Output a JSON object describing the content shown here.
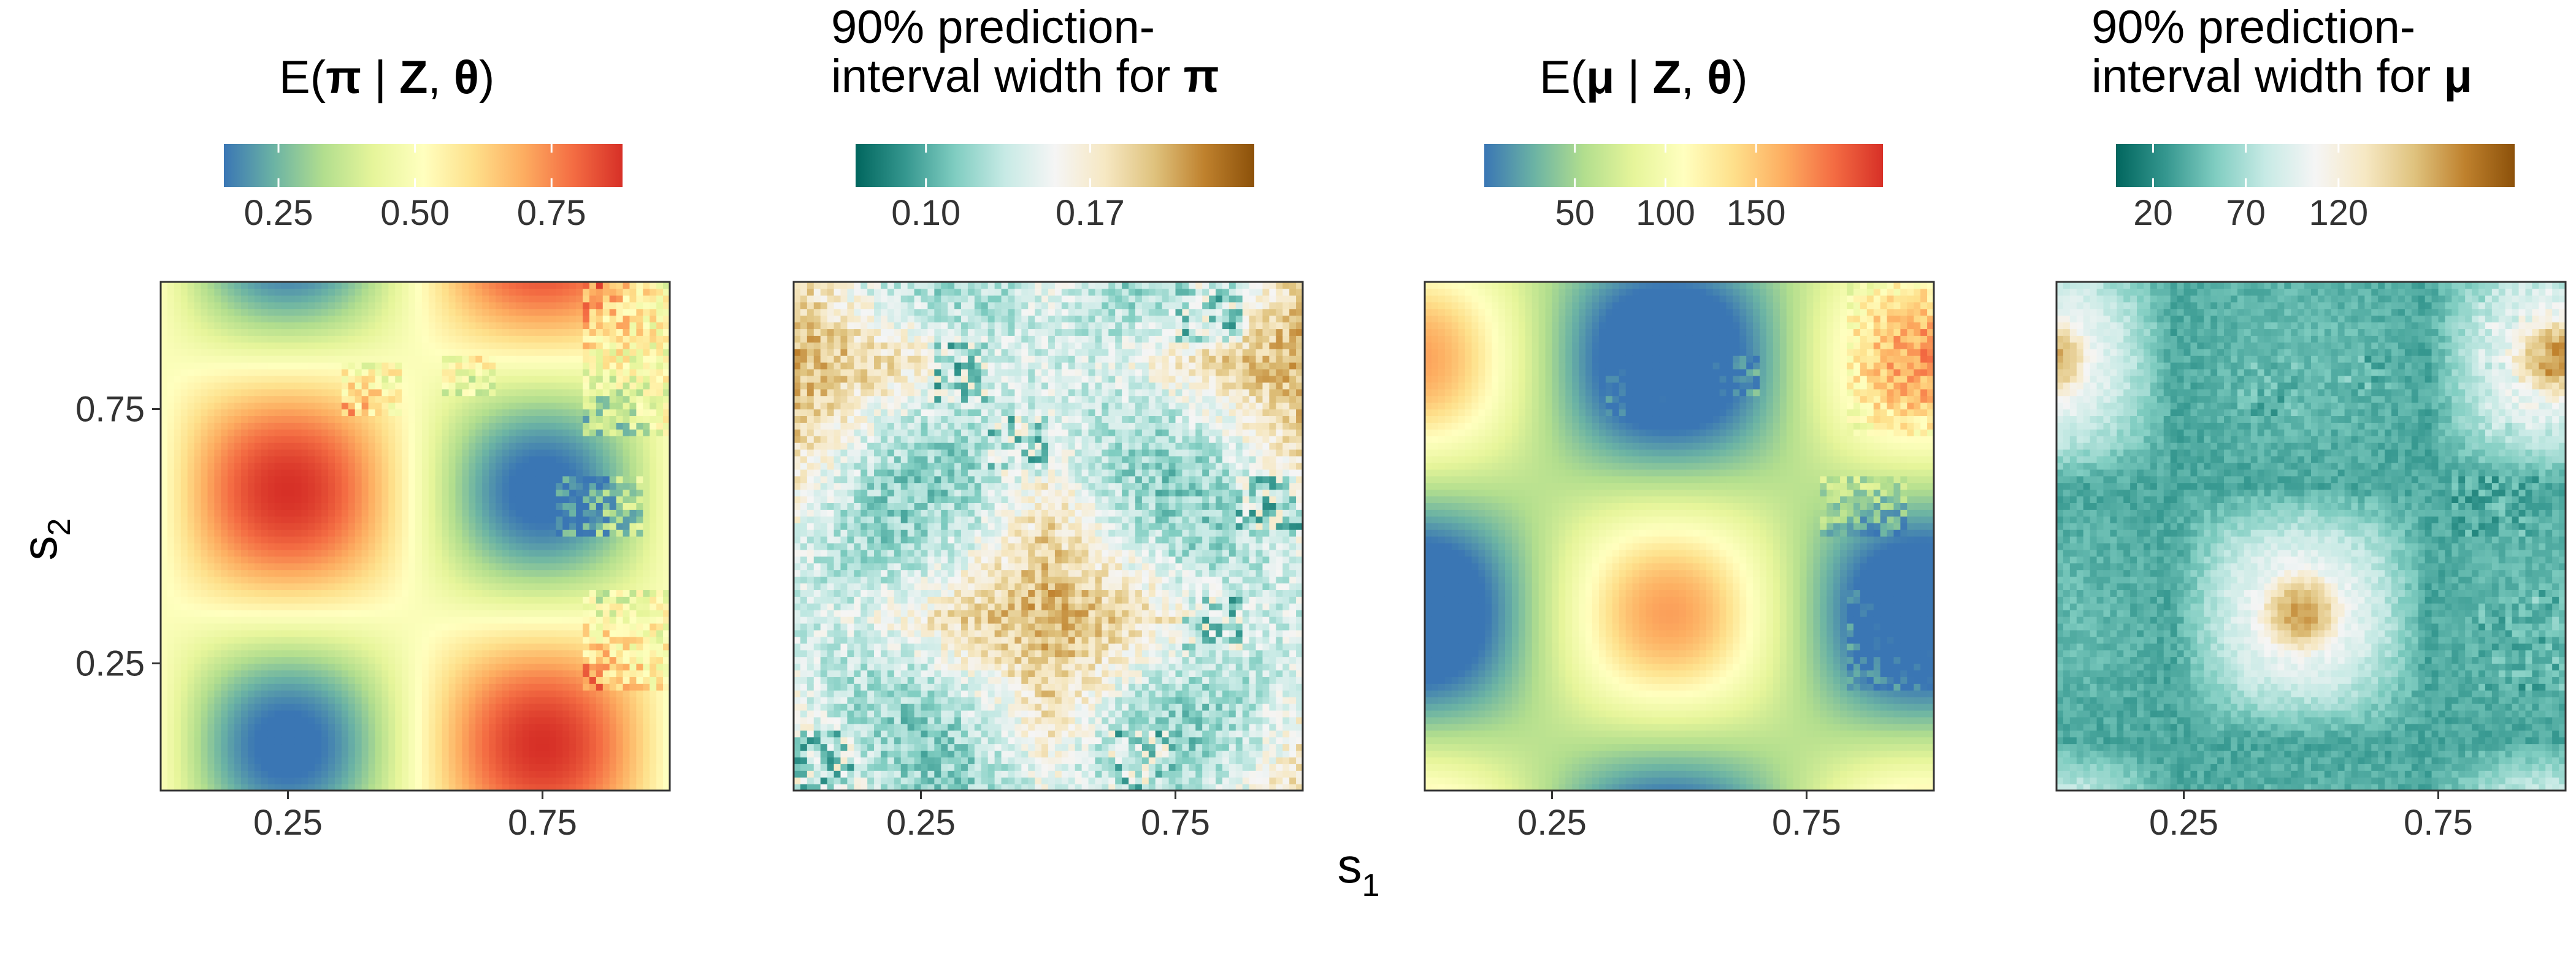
{
  "figure": {
    "shared_xlabel": "s",
    "shared_xlabel_sub": "1",
    "shared_ylabel": "s",
    "shared_ylabel_sub": "2"
  },
  "chart_data": [
    {
      "type": "heatmap",
      "title_parts": [
        [
          "E(",
          false
        ],
        [
          "π",
          true
        ],
        [
          " | ",
          false
        ],
        [
          "Z",
          true
        ],
        [
          ", ",
          false
        ],
        [
          "θ",
          true
        ],
        [
          ")",
          false
        ]
      ],
      "colorbar": {
        "palette": "RdYlBu (reversed)",
        "colors": [
          "#3a76b4",
          "#6bb3a4",
          "#b2de8e",
          "#e6f59a",
          "#ffffbf",
          "#fee08b",
          "#fdae61",
          "#f46d43",
          "#d73027"
        ],
        "range": [
          0.15,
          0.88
        ],
        "ticks": [
          0.25,
          0.5,
          0.75
        ],
        "tick_labels": [
          "0.25",
          "0.50",
          "0.75"
        ]
      },
      "field": {
        "kind": "prob",
        "vmin": 0.15,
        "vmax": 0.88
      },
      "x_ticks": [
        0.25,
        0.75
      ],
      "x_tick_labels": [
        "0.25",
        "0.75"
      ],
      "y_ticks": [
        0.25,
        0.75
      ],
      "y_tick_labels": [
        "0.25",
        "0.75"
      ],
      "xlim": [
        0.0,
        1.0
      ],
      "ylim": [
        0.0,
        1.0
      ],
      "show_y_axis": true
    },
    {
      "type": "heatmap",
      "title_parts": [
        [
          "90% prediction-",
          false
        ],
        [
          "\n",
          false
        ],
        [
          "interval width for ",
          false
        ],
        [
          "π",
          true
        ]
      ],
      "colorbar": {
        "palette": "BrBG (reversed)",
        "colors": [
          "#01665e",
          "#35978f",
          "#80cdc1",
          "#c7eae5",
          "#f5f5f5",
          "#f6e8c3",
          "#dfc27d",
          "#bf812d",
          "#8c510a"
        ],
        "range": [
          0.07,
          0.24
        ],
        "ticks": [
          0.1,
          0.17
        ],
        "tick_labels": [
          "0.10",
          "0.17"
        ]
      },
      "field": {
        "kind": "pi_width",
        "vmin": 0.07,
        "vmax": 0.24
      },
      "x_ticks": [
        0.25,
        0.75
      ],
      "x_tick_labels": [
        "0.25",
        "0.75"
      ],
      "y_ticks": [],
      "y_tick_labels": [],
      "xlim": [
        0.0,
        1.0
      ],
      "ylim": [
        0.0,
        1.0
      ],
      "show_y_axis": false
    },
    {
      "type": "heatmap",
      "title_parts": [
        [
          "E(",
          false
        ],
        [
          "μ",
          true
        ],
        [
          " | ",
          false
        ],
        [
          "Z",
          true
        ],
        [
          ", ",
          false
        ],
        [
          "θ",
          true
        ],
        [
          ")",
          false
        ]
      ],
      "colorbar": {
        "palette": "RdYlBu (reversed)",
        "colors": [
          "#3a76b4",
          "#6bb3a4",
          "#b2de8e",
          "#e6f59a",
          "#ffffbf",
          "#fee08b",
          "#fdae61",
          "#f46d43",
          "#d73027"
        ],
        "range": [
          0,
          220
        ],
        "ticks": [
          50,
          100,
          150
        ],
        "tick_labels": [
          "50",
          "100",
          "150"
        ]
      },
      "field": {
        "kind": "mu",
        "vmin": 0,
        "vmax": 220
      },
      "x_ticks": [
        0.25,
        0.75
      ],
      "x_tick_labels": [
        "0.25",
        "0.75"
      ],
      "y_ticks": [],
      "y_tick_labels": [],
      "xlim": [
        0.0,
        1.0
      ],
      "ylim": [
        0.0,
        1.0
      ],
      "show_y_axis": false
    },
    {
      "type": "heatmap",
      "title_parts": [
        [
          "90% prediction-",
          false
        ],
        [
          "\n",
          false
        ],
        [
          "interval width for ",
          false
        ],
        [
          "μ",
          true
        ]
      ],
      "colorbar": {
        "palette": "BrBG (reversed)",
        "colors": [
          "#01665e",
          "#35978f",
          "#80cdc1",
          "#c7eae5",
          "#f5f5f5",
          "#f6e8c3",
          "#dfc27d",
          "#bf812d",
          "#8c510a"
        ],
        "range": [
          0,
          215
        ],
        "ticks": [
          20,
          70,
          120
        ],
        "tick_labels": [
          "20",
          "70",
          "120"
        ]
      },
      "field": {
        "kind": "mu_width",
        "vmin": 0,
        "vmax": 215
      },
      "x_ticks": [
        0.25,
        0.75
      ],
      "x_tick_labels": [
        "0.25",
        "0.75"
      ],
      "y_ticks": [],
      "y_tick_labels": [],
      "xlim": [
        0.0,
        1.0
      ],
      "ylim": [
        0.0,
        1.0
      ],
      "show_y_axis": false
    }
  ]
}
